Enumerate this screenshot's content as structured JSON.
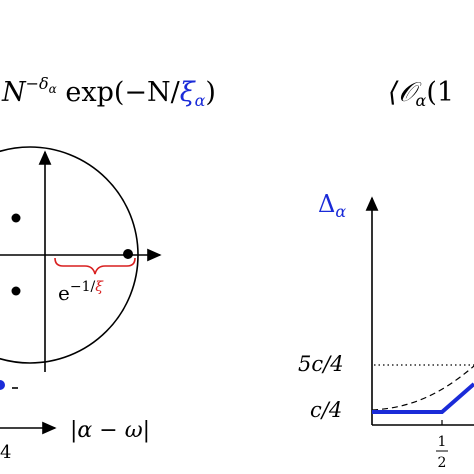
{
  "header": {
    "left_formula": [
      "N",
      "−δ",
      "α",
      " exp(−N/",
      "ξ",
      "α",
      ")"
    ],
    "right_formula": [
      "⟨𝒪",
      "α",
      "(1"
    ]
  },
  "left_diagram": {
    "radius_label": [
      "e",
      "−1/",
      "ξ"
    ],
    "axis_label": "|α − ω|",
    "tick_label": "4"
  },
  "right_plot": {
    "y_label": [
      "Δ",
      "α"
    ],
    "yticks": [
      "5c/4",
      "c/4"
    ],
    "xtick": [
      "1",
      "2"
    ]
  }
}
